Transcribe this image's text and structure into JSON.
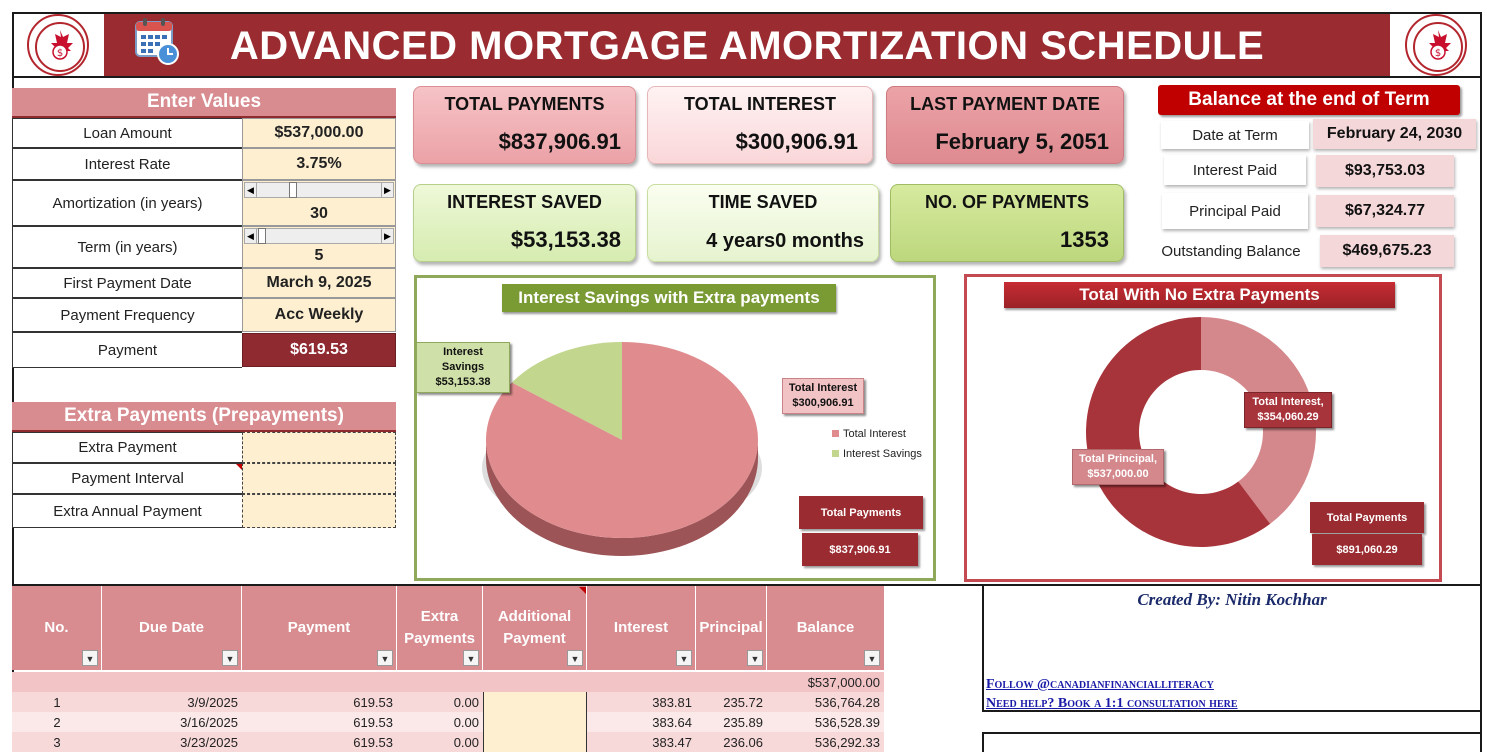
{
  "header": {
    "title": "ADVANCED MORTGAGE AMORTIZATION SCHEDULE",
    "logo_text": "CANADIAN FINANCIAL LITERACY"
  },
  "enter_values": {
    "title": "Enter Values",
    "rows": [
      {
        "label": "Loan Amount",
        "value": "$537,000.00"
      },
      {
        "label": "Interest Rate",
        "value": "3.75%"
      },
      {
        "label": "Amortization (in years)",
        "value": "30"
      },
      {
        "label": "Term (in years)",
        "value": "5"
      },
      {
        "label": "First Payment Date",
        "value": "March 9, 2025"
      },
      {
        "label": "Payment Frequency",
        "value": "Acc Weekly"
      },
      {
        "label": "Payment",
        "value": "$619.53"
      }
    ]
  },
  "extra_payments": {
    "title": "Extra Payments (Prepayments)",
    "rows": [
      {
        "label": "Extra Payment",
        "value": ""
      },
      {
        "label": "Payment Interval",
        "value": ""
      },
      {
        "label": "Extra Annual Payment",
        "value": ""
      }
    ]
  },
  "cards": {
    "total_payments": {
      "title": "TOTAL PAYMENTS",
      "value": "$837,906.91"
    },
    "total_interest": {
      "title": "TOTAL INTEREST",
      "value": "$300,906.91"
    },
    "last_payment": {
      "title": "LAST PAYMENT DATE",
      "value": "February 5, 2051"
    },
    "interest_saved": {
      "title": "INTEREST SAVED",
      "value": "$53,153.38"
    },
    "time_saved": {
      "title": "TIME SAVED",
      "value": "4 years0 months"
    },
    "num_payments": {
      "title": "NO. OF PAYMENTS",
      "value": "1353"
    }
  },
  "balance_term": {
    "title": "Balance at the end of Term",
    "rows": [
      {
        "label": "Date at Term",
        "value": "February 24, 2030"
      },
      {
        "label": "Interest Paid",
        "value": "$93,753.03"
      },
      {
        "label": "Principal Paid",
        "value": "$67,324.77"
      },
      {
        "label": "Outstanding Balance",
        "value": "$469,675.23"
      }
    ]
  },
  "chart_data": [
    {
      "type": "pie",
      "title": "Interest Savings with Extra payments",
      "categories": [
        "Total Interest",
        "Interest Savings"
      ],
      "values": [
        300906.91,
        53153.38
      ],
      "labels": [
        {
          "name": "Total Interest",
          "value": "$300,906.91"
        },
        {
          "name": "Interest Savings",
          "value": "$53,153.38"
        }
      ],
      "legend": [
        "Total Interest",
        "Interest Savings"
      ],
      "legend_position": "right",
      "total_label": "Total Payments",
      "total_value": "$837,906.91",
      "colors": [
        "#e08c8f",
        "#c2d68e"
      ]
    },
    {
      "type": "pie",
      "title": "Total With No Extra Payments",
      "categories": [
        "Total Interest",
        "Total Principal"
      ],
      "values": [
        354060.29,
        537000.0
      ],
      "labels": [
        {
          "name": "Total Interest,",
          "value": "$354,060.29"
        },
        {
          "name": "Total Principal,",
          "value": "$537,000.00"
        }
      ],
      "total_label": "Total Payments",
      "total_value": "$891,060.29",
      "colors": [
        "#d4888c",
        "#a8343b"
      ]
    }
  ],
  "table": {
    "columns": [
      "No.",
      "Due Date",
      "Payment",
      "Extra Payments",
      "Additional Payment",
      "Interest",
      "Principal",
      "Balance"
    ],
    "start_balance": "$537,000.00",
    "rows": [
      [
        "1",
        "3/9/2025",
        "619.53",
        "0.00",
        "",
        "383.81",
        "235.72",
        "536,764.28"
      ],
      [
        "2",
        "3/16/2025",
        "619.53",
        "0.00",
        "",
        "383.64",
        "235.89",
        "536,528.39"
      ],
      [
        "3",
        "3/23/2025",
        "619.53",
        "0.00",
        "",
        "383.47",
        "236.06",
        "536,292.33"
      ]
    ]
  },
  "credits": {
    "created_by": "Created By: Nitin Kochhar",
    "follow": "Follow @canadianfinancialliteracy",
    "help": "Need help? Book a 1:1 consultation here"
  }
}
